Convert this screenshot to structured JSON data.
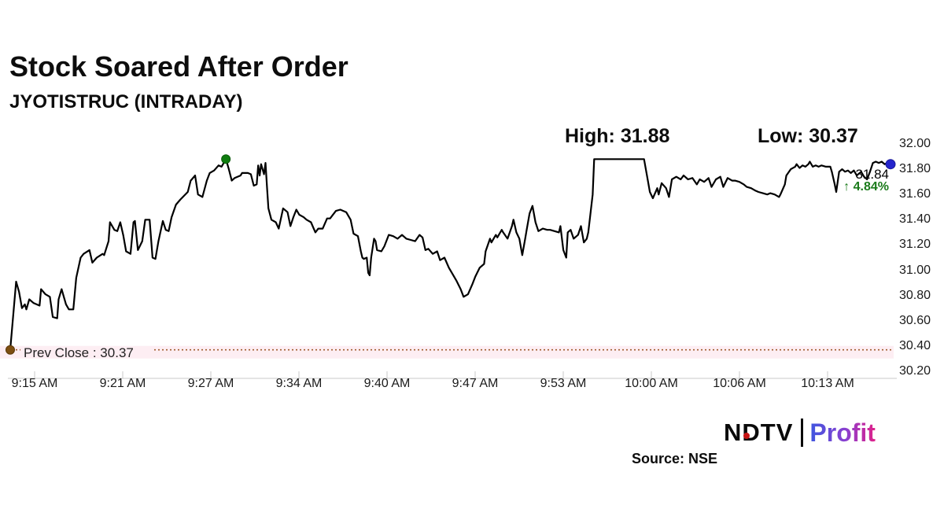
{
  "header": {
    "title": "Stock Soared After Order",
    "subtitle": "JYOTISTRUC (INTRADAY)"
  },
  "annotations": {
    "high_label": "High: 31.88",
    "low_label": "Low: 30.37",
    "prev_close_label": "Prev Close : 30.37",
    "last_price": "31.84",
    "change_arrow": "↑",
    "change_pct_text": "4.84%"
  },
  "footer": {
    "logo_ndtv": "NDTV",
    "logo_profit": "Profit",
    "source": "Source: NSE"
  },
  "chart_data": {
    "type": "line",
    "title": "JYOTISTRUC (INTRADAY)",
    "series_name": "JYOTISTRUC price",
    "xlabel": "",
    "ylabel": "",
    "x_ticks": [
      "9:15 AM",
      "9:21 AM",
      "9:27 AM",
      "9:34 AM",
      "9:40 AM",
      "9:47 AM",
      "9:53 AM",
      "10:00 AM",
      "10:06 AM",
      "10:13 AM"
    ],
    "x_tick_minutes": [
      0,
      6,
      12,
      19,
      25,
      31,
      38,
      45,
      51,
      58
    ],
    "y_ticks": [
      32.0,
      31.8,
      31.6,
      31.4,
      31.2,
      31.0,
      30.8,
      30.6,
      30.4,
      30.2
    ],
    "ylim": [
      30.2,
      32.0
    ],
    "x_minutes_range": [
      0,
      60
    ],
    "grid": false,
    "legend": false,
    "high": 31.88,
    "low": 30.37,
    "prev_close": 30.37,
    "last": 31.84,
    "change_pct": 4.84,
    "points": [
      [
        0,
        30.37
      ],
      [
        0.4,
        30.91
      ],
      [
        0.6,
        30.83
      ],
      [
        0.8,
        30.7
      ],
      [
        1.0,
        30.73
      ],
      [
        1.1,
        30.69
      ],
      [
        1.3,
        30.77
      ],
      [
        1.6,
        30.74
      ],
      [
        2.0,
        30.72
      ],
      [
        2.1,
        30.85
      ],
      [
        2.4,
        30.81
      ],
      [
        2.7,
        30.79
      ],
      [
        2.9,
        30.63
      ],
      [
        3.2,
        30.62
      ],
      [
        3.3,
        30.77
      ],
      [
        3.5,
        30.85
      ],
      [
        3.8,
        30.73
      ],
      [
        4.0,
        30.69
      ],
      [
        4.3,
        30.69
      ],
      [
        4.5,
        30.94
      ],
      [
        4.8,
        31.1
      ],
      [
        5.0,
        31.13
      ],
      [
        5.4,
        31.16
      ],
      [
        5.6,
        31.06
      ],
      [
        5.9,
        31.1
      ],
      [
        6.3,
        31.13
      ],
      [
        6.4,
        31.12
      ],
      [
        6.7,
        31.23
      ],
      [
        6.8,
        31.38
      ],
      [
        7.1,
        31.32
      ],
      [
        7.3,
        31.31
      ],
      [
        7.5,
        31.38
      ],
      [
        7.7,
        31.28
      ],
      [
        7.9,
        31.15
      ],
      [
        8.2,
        31.13
      ],
      [
        8.4,
        31.38
      ],
      [
        8.5,
        31.39
      ],
      [
        8.7,
        31.16
      ],
      [
        9.0,
        31.23
      ],
      [
        9.2,
        31.4
      ],
      [
        9.5,
        31.4
      ],
      [
        9.7,
        31.1
      ],
      [
        9.9,
        31.09
      ],
      [
        10.1,
        31.23
      ],
      [
        10.4,
        31.39
      ],
      [
        10.6,
        31.32
      ],
      [
        10.8,
        31.31
      ],
      [
        11.0,
        31.42
      ],
      [
        11.3,
        31.52
      ],
      [
        11.6,
        31.56
      ],
      [
        12.1,
        31.62
      ],
      [
        12.3,
        31.71
      ],
      [
        12.6,
        31.75
      ],
      [
        12.8,
        31.6
      ],
      [
        13.1,
        31.58
      ],
      [
        13.4,
        31.71
      ],
      [
        13.6,
        31.77
      ],
      [
        13.9,
        31.79
      ],
      [
        14.2,
        31.83
      ],
      [
        14.4,
        31.82
      ],
      [
        14.7,
        31.88
      ],
      [
        14.9,
        31.8
      ],
      [
        15.1,
        31.71
      ],
      [
        15.3,
        31.73
      ],
      [
        15.7,
        31.75
      ],
      [
        15.8,
        31.77
      ],
      [
        16.2,
        31.77
      ],
      [
        16.4,
        31.76
      ],
      [
        16.6,
        31.67
      ],
      [
        16.8,
        31.68
      ],
      [
        16.9,
        31.83
      ],
      [
        17.0,
        31.75
      ],
      [
        17.1,
        31.84
      ],
      [
        17.3,
        31.76
      ],
      [
        17.4,
        31.85
      ],
      [
        17.5,
        31.66
      ],
      [
        17.6,
        31.49
      ],
      [
        17.8,
        31.4
      ],
      [
        18.1,
        31.38
      ],
      [
        18.3,
        31.33
      ],
      [
        18.6,
        31.49
      ],
      [
        18.9,
        31.46
      ],
      [
        19.1,
        31.35
      ],
      [
        19.3,
        31.42
      ],
      [
        19.5,
        31.48
      ],
      [
        19.7,
        31.44
      ],
      [
        20.0,
        31.42
      ],
      [
        20.2,
        31.4
      ],
      [
        20.5,
        31.38
      ],
      [
        20.8,
        31.3
      ],
      [
        21.0,
        31.33
      ],
      [
        21.3,
        31.33
      ],
      [
        21.6,
        31.41
      ],
      [
        21.8,
        31.41
      ],
      [
        22.2,
        31.47
      ],
      [
        22.5,
        31.48
      ],
      [
        22.9,
        31.46
      ],
      [
        23.2,
        31.4
      ],
      [
        23.4,
        31.29
      ],
      [
        23.7,
        31.27
      ],
      [
        23.9,
        31.15
      ],
      [
        24.0,
        31.1
      ],
      [
        24.1,
        31.09
      ],
      [
        24.3,
        31.1
      ],
      [
        24.4,
        30.98
      ],
      [
        24.5,
        30.96
      ],
      [
        24.6,
        31.1
      ],
      [
        24.8,
        31.25
      ],
      [
        24.9,
        31.23
      ],
      [
        25.0,
        31.16
      ],
      [
        25.3,
        31.15
      ],
      [
        25.5,
        31.19
      ],
      [
        25.8,
        31.28
      ],
      [
        26.1,
        31.27
      ],
      [
        26.4,
        31.25
      ],
      [
        26.7,
        31.28
      ],
      [
        27.0,
        31.25
      ],
      [
        27.3,
        31.24
      ],
      [
        27.6,
        31.23
      ],
      [
        27.9,
        31.28
      ],
      [
        28.1,
        31.26
      ],
      [
        28.3,
        31.16
      ],
      [
        28.5,
        31.17
      ],
      [
        28.8,
        31.13
      ],
      [
        29.1,
        31.15
      ],
      [
        29.3,
        31.08
      ],
      [
        29.6,
        31.1
      ],
      [
        29.9,
        31.02
      ],
      [
        30.1,
        30.98
      ],
      [
        30.4,
        30.92
      ],
      [
        30.7,
        30.85
      ],
      [
        30.9,
        30.79
      ],
      [
        31.2,
        30.81
      ],
      [
        31.5,
        30.89
      ],
      [
        31.7,
        30.95
      ],
      [
        32.0,
        31.02
      ],
      [
        32.3,
        31.05
      ],
      [
        32.4,
        31.15
      ],
      [
        32.7,
        31.25
      ],
      [
        32.8,
        31.22
      ],
      [
        33.1,
        31.28
      ],
      [
        33.2,
        31.26
      ],
      [
        33.5,
        31.32
      ],
      [
        33.6,
        31.3
      ],
      [
        33.9,
        31.25
      ],
      [
        34.2,
        31.35
      ],
      [
        34.3,
        31.4
      ],
      [
        34.5,
        31.3
      ],
      [
        34.7,
        31.25
      ],
      [
        34.9,
        31.12
      ],
      [
        35.1,
        31.25
      ],
      [
        35.2,
        31.32
      ],
      [
        35.4,
        31.45
      ],
      [
        35.6,
        31.51
      ],
      [
        35.8,
        31.38
      ],
      [
        36.0,
        31.31
      ],
      [
        36.3,
        31.33
      ],
      [
        36.6,
        31.32
      ],
      [
        36.8,
        31.32
      ],
      [
        37.1,
        31.31
      ],
      [
        37.4,
        31.3
      ],
      [
        37.5,
        31.35
      ],
      [
        37.7,
        31.16
      ],
      [
        37.9,
        31.1
      ],
      [
        38.0,
        31.3
      ],
      [
        38.2,
        31.32
      ],
      [
        38.4,
        31.25
      ],
      [
        38.7,
        31.28
      ],
      [
        38.9,
        31.35
      ],
      [
        39.1,
        31.22
      ],
      [
        39.3,
        31.25
      ],
      [
        39.4,
        31.3
      ],
      [
        39.5,
        31.4
      ],
      [
        39.7,
        31.6
      ],
      [
        39.8,
        31.88
      ],
      [
        43.2,
        31.88
      ],
      [
        43.4,
        31.75
      ],
      [
        43.6,
        31.62
      ],
      [
        43.8,
        31.57
      ],
      [
        44.1,
        31.65
      ],
      [
        44.2,
        31.6
      ],
      [
        44.4,
        31.69
      ],
      [
        44.7,
        31.65
      ],
      [
        44.9,
        31.58
      ],
      [
        45.1,
        31.72
      ],
      [
        45.4,
        31.74
      ],
      [
        45.7,
        31.72
      ],
      [
        45.9,
        31.75
      ],
      [
        46.2,
        31.72
      ],
      [
        46.5,
        31.73
      ],
      [
        46.8,
        31.68
      ],
      [
        47.0,
        31.72
      ],
      [
        47.3,
        31.7
      ],
      [
        47.6,
        31.73
      ],
      [
        47.8,
        31.66
      ],
      [
        48.1,
        31.72
      ],
      [
        48.4,
        31.74
      ],
      [
        48.6,
        31.66
      ],
      [
        48.9,
        31.73
      ],
      [
        49.2,
        31.71
      ],
      [
        49.4,
        31.71
      ],
      [
        49.7,
        31.7
      ],
      [
        50.0,
        31.68
      ],
      [
        50.2,
        31.66
      ],
      [
        50.5,
        31.65
      ],
      [
        50.8,
        31.63
      ],
      [
        51.0,
        31.62
      ],
      [
        51.3,
        31.61
      ],
      [
        51.6,
        31.6
      ],
      [
        51.8,
        31.61
      ],
      [
        52.1,
        31.6
      ],
      [
        52.4,
        31.58
      ],
      [
        52.5,
        31.6
      ],
      [
        52.8,
        31.68
      ],
      [
        52.9,
        31.75
      ],
      [
        53.2,
        31.8
      ],
      [
        53.5,
        31.82
      ],
      [
        53.6,
        31.84
      ],
      [
        53.8,
        31.81
      ],
      [
        54.0,
        31.83
      ],
      [
        54.2,
        31.82
      ],
      [
        54.4,
        31.84
      ],
      [
        54.5,
        31.86
      ],
      [
        54.7,
        31.82
      ],
      [
        54.9,
        31.83
      ],
      [
        55.1,
        31.82
      ],
      [
        55.3,
        31.83
      ],
      [
        55.6,
        31.82
      ],
      [
        55.9,
        31.82
      ],
      [
        56.0,
        31.78
      ],
      [
        56.2,
        31.68
      ],
      [
        56.3,
        31.62
      ],
      [
        56.5,
        31.78
      ],
      [
        56.7,
        31.8
      ],
      [
        56.9,
        31.78
      ],
      [
        57.1,
        31.79
      ],
      [
        57.3,
        31.77
      ],
      [
        57.5,
        31.79
      ],
      [
        57.7,
        31.75
      ],
      [
        58.0,
        31.78
      ],
      [
        58.2,
        31.74
      ],
      [
        58.4,
        31.72
      ],
      [
        58.6,
        31.78
      ],
      [
        58.8,
        31.85
      ],
      [
        59.0,
        31.86
      ],
      [
        59.2,
        31.85
      ],
      [
        59.4,
        31.86
      ],
      [
        59.6,
        31.84
      ],
      [
        59.8,
        31.85
      ],
      [
        60.0,
        31.84
      ]
    ],
    "markers": {
      "low_point": {
        "minute": 0,
        "price": 30.37,
        "color": "#7d4e10",
        "stroke": "#5a3808"
      },
      "high_point": {
        "minute": 14.7,
        "price": 31.88,
        "color": "#0f7d0f",
        "stroke": "#0a5c0a"
      },
      "last_point": {
        "minute": 60,
        "price": 31.84,
        "color": "#2424cc",
        "stroke": "#1a1a99"
      }
    },
    "colors": {
      "line": "#000000",
      "prev_close_line": "#a05c2e",
      "prev_close_band": "#fdeef3",
      "axis": "#c9c9c9",
      "change_pct": "#1a7a1a"
    }
  }
}
